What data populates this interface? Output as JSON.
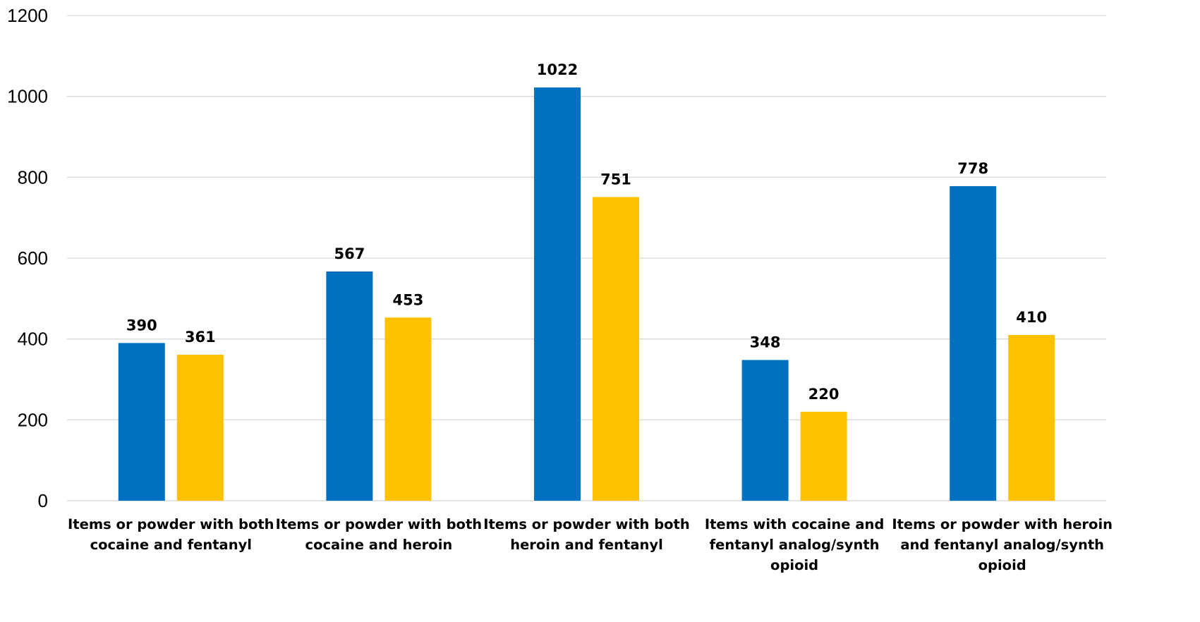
{
  "chart_data": {
    "type": "bar",
    "title": "",
    "xlabel": "",
    "ylabel": "",
    "ylim": [
      0,
      1200
    ],
    "yticks": [
      "0",
      "200",
      "400",
      "600",
      "800",
      "1000",
      "1200"
    ],
    "grid": true,
    "legend": "none",
    "categories": [
      [
        "Items or powder with both",
        "cocaine and fentanyl"
      ],
      [
        "Items or powder with both",
        "cocaine and heroin"
      ],
      [
        "Items or powder with both",
        "heroin and fentanyl"
      ],
      [
        "Items with cocaine and",
        "fentanyl analog/synth",
        "opioid"
      ],
      [
        "Items or powder with heroin",
        "and fentanyl analog/synth",
        "opioid"
      ]
    ],
    "series": [
      {
        "color": "#0070C0",
        "values": [
          390,
          567,
          1022,
          348,
          778
        ]
      },
      {
        "color": "#FFC000",
        "values": [
          361,
          453,
          751,
          220,
          410
        ]
      }
    ]
  }
}
